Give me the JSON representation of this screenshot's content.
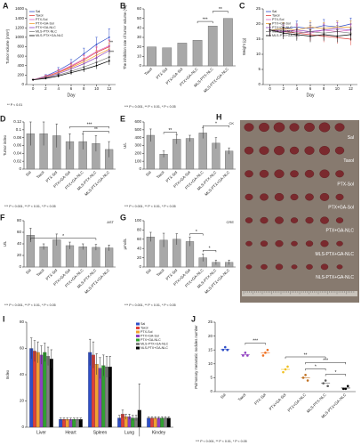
{
  "chart_data": [
    {
      "type": "line",
      "label": "A",
      "xlabel": "Day",
      "ylabel": "Tumor volume (mm³)",
      "x": [
        0,
        2,
        4,
        6,
        8,
        10,
        12
      ],
      "xlim": [
        -1,
        13
      ],
      "xticks": [
        0,
        2,
        4,
        6,
        8,
        10,
        12
      ],
      "ylim": [
        0,
        1600
      ],
      "yticks": [
        0,
        200,
        400,
        600,
        800,
        1000,
        1200,
        1400,
        1600
      ],
      "series": [
        {
          "name": "Sal",
          "color": "#2f4fc8",
          "values": [
            100,
            180,
            300,
            450,
            650,
            850,
            1000
          ],
          "errors": [
            10,
            30,
            60,
            80,
            120,
            150,
            180
          ]
        },
        {
          "name": "Taxol",
          "color": "#e0403a",
          "values": [
            100,
            170,
            260,
            380,
            520,
            680,
            800
          ],
          "errors": [
            10,
            30,
            50,
            70,
            90,
            110,
            130
          ]
        },
        {
          "name": "PTX-Sol",
          "color": "#e060c0",
          "values": [
            100,
            170,
            270,
            400,
            540,
            700,
            820
          ],
          "errors": [
            10,
            30,
            50,
            70,
            90,
            110,
            130
          ]
        },
        {
          "name": "PTX+GA-Sol",
          "color": "#f0a030",
          "values": [
            100,
            160,
            250,
            360,
            480,
            620,
            750
          ],
          "errors": [
            10,
            25,
            45,
            60,
            80,
            100,
            120
          ]
        },
        {
          "name": "PTX+GA-NLC",
          "color": "#9040c0",
          "values": [
            100,
            150,
            230,
            330,
            440,
            570,
            720
          ],
          "errors": [
            10,
            25,
            40,
            55,
            75,
            95,
            110
          ]
        },
        {
          "name": "MLS-PTX-NLC",
          "color": "#808080",
          "values": [
            100,
            140,
            200,
            280,
            370,
            470,
            580
          ],
          "errors": [
            10,
            20,
            35,
            50,
            65,
            80,
            95
          ]
        },
        {
          "name": "MLS-PTX+GA-NLC",
          "color": "#000000",
          "values": [
            100,
            130,
            180,
            250,
            320,
            400,
            500
          ],
          "errors": [
            10,
            20,
            30,
            45,
            55,
            70,
            85
          ]
        }
      ],
      "annotations": [
        "***",
        "**"
      ],
      "note": "** P < 0.01"
    },
    {
      "type": "bar",
      "label": "B",
      "ylabel": "The inhibition rate of tumor volume (%)",
      "color": "#a8a8a8",
      "categories": [
        "Taxol",
        "PTX-Sol",
        "PTX+GA-Sol",
        "PTX+GA-NLC",
        "MLS-PTX-NLC",
        "MLS-PTX+GA-NLC"
      ],
      "values": [
        20,
        19,
        24,
        27,
        42,
        50
      ],
      "ylim": [
        0,
        60
      ],
      "yticks": [
        0,
        10,
        20,
        30,
        40,
        50,
        60
      ],
      "annotations": [
        "***",
        "**"
      ],
      "note": "*** P < 0.001, ** P < 0.01, * P < 0.05"
    },
    {
      "type": "line",
      "label": "C",
      "xlabel": "Day",
      "ylabel": "Weight (g)",
      "x": [
        0,
        2,
        4,
        6,
        8,
        10,
        12
      ],
      "xlim": [
        -1,
        13
      ],
      "xticks": [
        0,
        2,
        4,
        6,
        8,
        10,
        12
      ],
      "ylim": [
        0,
        25
      ],
      "yticks": [
        0,
        5,
        10,
        15,
        20,
        25
      ],
      "series": [
        {
          "name": "Sal",
          "color": "#2f4fc8",
          "values": [
            18,
            18.5,
            19,
            18.5,
            19.5,
            19,
            20
          ],
          "errors": [
            2,
            2,
            2,
            2,
            2,
            2,
            2
          ]
        },
        {
          "name": "Taxol",
          "color": "#e0403a",
          "values": [
            18,
            17.5,
            17,
            16.5,
            16,
            15.5,
            15
          ],
          "errors": [
            2,
            2,
            2,
            2,
            2,
            2,
            2
          ]
        },
        {
          "name": "PTX-Sol",
          "color": "#e060c0",
          "values": [
            18,
            18,
            17.5,
            17,
            18,
            17.5,
            18
          ],
          "errors": [
            2,
            2,
            2,
            2,
            2,
            2,
            2
          ]
        },
        {
          "name": "PTX+GA-Sol",
          "color": "#f0a030",
          "values": [
            18,
            18.5,
            18,
            19,
            18.5,
            19,
            19
          ],
          "errors": [
            2,
            2,
            2,
            2,
            2,
            2,
            2
          ]
        },
        {
          "name": "PTX+GA-NLC",
          "color": "#9040c0",
          "values": [
            18,
            17.5,
            18,
            17.5,
            18,
            18.5,
            18
          ],
          "errors": [
            2,
            2,
            2,
            2,
            2,
            2,
            2
          ]
        },
        {
          "name": "MLS-PTX-NLC",
          "color": "#808080",
          "values": [
            18,
            18,
            17,
            17.5,
            17,
            17.5,
            17
          ],
          "errors": [
            2,
            2,
            2,
            2,
            2,
            2,
            2
          ]
        },
        {
          "name": "MLS-PTX+GA-NLC",
          "color": "#000000",
          "values": [
            18,
            17,
            16.5,
            16,
            16.5,
            16,
            16.5
          ],
          "errors": [
            2,
            2,
            2,
            2,
            2,
            2,
            2
          ]
        }
      ]
    },
    {
      "type": "bar",
      "label": "D",
      "ylabel": "Tumor index",
      "color": "#a8a8a8",
      "categories": [
        "Sal",
        "Taxol",
        "PTX-Sol",
        "PTX+GA-Sol",
        "PTX+GA-NLC",
        "MLS-PTX-NLC",
        "MLS-PTX+GA-NLC"
      ],
      "values": [
        0.09,
        0.09,
        0.085,
        0.07,
        0.07,
        0.065,
        0.05
      ],
      "errors": [
        0.03,
        0.03,
        0.03,
        0.02,
        0.02,
        0.02,
        0.02
      ],
      "ylim": [
        0,
        0.12
      ],
      "yticks": [
        0,
        0.02,
        0.04,
        0.06,
        0.08,
        0.1,
        0.12
      ],
      "annotations": [
        "***",
        "**"
      ],
      "note": "*** P < 0.001, ** P < 0.01, * P < 0.05"
    },
    {
      "type": "bar",
      "label": "E",
      "ylabel": "U/L",
      "corner_text": "CK",
      "color": "#a8a8a8",
      "categories": [
        "Sal",
        "Taxol",
        "PTX-Sol",
        "PTX+GA-Sol",
        "PTX+GA-NLC",
        "MLS-PTX-NLC",
        "MLS-PTX+GA-NLC"
      ],
      "values": [
        430,
        190,
        380,
        390,
        460,
        330,
        230
      ],
      "errors": [
        80,
        40,
        60,
        40,
        70,
        70,
        40
      ],
      "ylim": [
        0,
        600
      ],
      "yticks": [
        0,
        100,
        200,
        300,
        400,
        500,
        600
      ],
      "annotations": [
        "**",
        "*"
      ],
      "note": "*** P < 0.001, ** P < 0.01, * P < 0.05"
    },
    {
      "type": "bar",
      "label": "F",
      "ylabel": "U/L",
      "corner_text": "AST",
      "color": "#a8a8a8",
      "categories": [
        "Sal",
        "Taxol",
        "PTX-Sol",
        "PTX+GA-Sol",
        "PTX+GA-NLC",
        "MLS-PTX-NLC",
        "MLS-PTX+GA-NLC"
      ],
      "values": [
        55,
        35,
        47,
        37,
        35,
        34,
        33
      ],
      "errors": [
        12,
        5,
        10,
        6,
        5,
        5,
        5
      ],
      "ylim": [
        0,
        80
      ],
      "yticks": [
        0,
        20,
        40,
        60,
        80
      ],
      "annotations": [
        "*"
      ],
      "note": "*** P < 0.001, ** P < 0.01, * P < 0.05"
    },
    {
      "type": "bar",
      "label": "G",
      "ylabel": "μmol/L",
      "corner_text": "CRE",
      "color": "#a8a8a8",
      "categories": [
        "Sal",
        "Taxol",
        "PTX-Sol",
        "PTX+GA-Sol",
        "PTX+GA-NLC",
        "MLS-PTX-NLC",
        "MLS-PTX+GA-NLC"
      ],
      "values": [
        65,
        58,
        60,
        55,
        20,
        10,
        10
      ],
      "errors": [
        10,
        15,
        12,
        10,
        8,
        5,
        5
      ],
      "ylim": [
        0,
        100
      ],
      "yticks": [
        0,
        20,
        40,
        60,
        80,
        100
      ],
      "annotations": [
        "*",
        "*"
      ],
      "note": "*** P < 0.001, ** P < 0.01, * P < 0.05"
    },
    {
      "type": "image",
      "label": "H",
      "labels": [
        "Sal",
        "Taxol",
        "PTX-Sol",
        "PTX+GA-Sol",
        "PTX+GA-NLC",
        "MLS-PTX+GA-NLC",
        "NLS-PTX+GA-NLC"
      ]
    },
    {
      "type": "grouped_bar",
      "label": "I",
      "ylabel": "Index",
      "categories": [
        "Liver",
        "Heart",
        "Spleen",
        "Lung",
        "Kindey"
      ],
      "ylim": [
        0,
        80
      ],
      "yticks": [
        0,
        20,
        40,
        60,
        80
      ],
      "series": [
        {
          "name": "Sal",
          "color": "#2f4fc8",
          "values": [
            60,
            6,
            57,
            7,
            7
          ],
          "errors": [
            8,
            1,
            10,
            2,
            1
          ]
        },
        {
          "name": "Taxol",
          "color": "#e0403a",
          "values": [
            58,
            6,
            55,
            10,
            7
          ],
          "errors": [
            8,
            1,
            10,
            3,
            1
          ]
        },
        {
          "name": "PTX-Sol",
          "color": "#f0a030",
          "values": [
            57,
            6,
            48,
            8,
            7
          ],
          "errors": [
            8,
            1,
            8,
            2,
            1
          ]
        },
        {
          "name": "PTX+GA-Sol",
          "color": "#9040c0",
          "values": [
            55,
            6,
            45,
            8,
            7
          ],
          "errors": [
            7,
            1,
            8,
            2,
            1
          ]
        },
        {
          "name": "PTX+GA-NLC",
          "color": "#30a030",
          "values": [
            57,
            6,
            47,
            7,
            7
          ],
          "errors": [
            7,
            1,
            8,
            2,
            1
          ]
        },
        {
          "name": "MLS-PTX+GA-NLC",
          "color": "#808080",
          "values": [
            54,
            6,
            46,
            7,
            7
          ],
          "errors": [
            7,
            1,
            8,
            2,
            1
          ]
        },
        {
          "name": "NLS-PTX+GA-NLC",
          "color": "#000000",
          "values": [
            52,
            6,
            46,
            13,
            7
          ],
          "errors": [
            7,
            1,
            8,
            20,
            1
          ]
        }
      ]
    },
    {
      "type": "strip",
      "label": "J",
      "ylabel": "Pulmonary metastatic nodules number",
      "categories": [
        "Sal",
        "Taxol",
        "PTX-Sol",
        "PTX+GA-Sol",
        "PTX+GA-NLC",
        "MLS-PTX-NLC",
        "MLS-PTX+GA-NLC"
      ],
      "colors": [
        "#2f4fc8",
        "#9040c0",
        "#f07020",
        "#f0c020",
        "#c07020",
        "#606060",
        "#000000"
      ],
      "points": [
        [
          15,
          16,
          15
        ],
        [
          13,
          14,
          13
        ],
        [
          13,
          14,
          15
        ],
        [
          7,
          8,
          9
        ],
        [
          5,
          6,
          4
        ],
        [
          3,
          4,
          2
        ],
        [
          1,
          1,
          2
        ]
      ],
      "means": [
        15.3,
        13.3,
        14,
        8,
        5,
        3,
        1.3
      ],
      "ylim": [
        0,
        25
      ],
      "yticks": [
        0,
        5,
        10,
        15,
        20,
        25
      ],
      "annotations": [
        "***",
        "**",
        "***",
        "*",
        "*"
      ],
      "note": "*** P < 0.001, ** P < 0.01, * P < 0.05"
    }
  ]
}
